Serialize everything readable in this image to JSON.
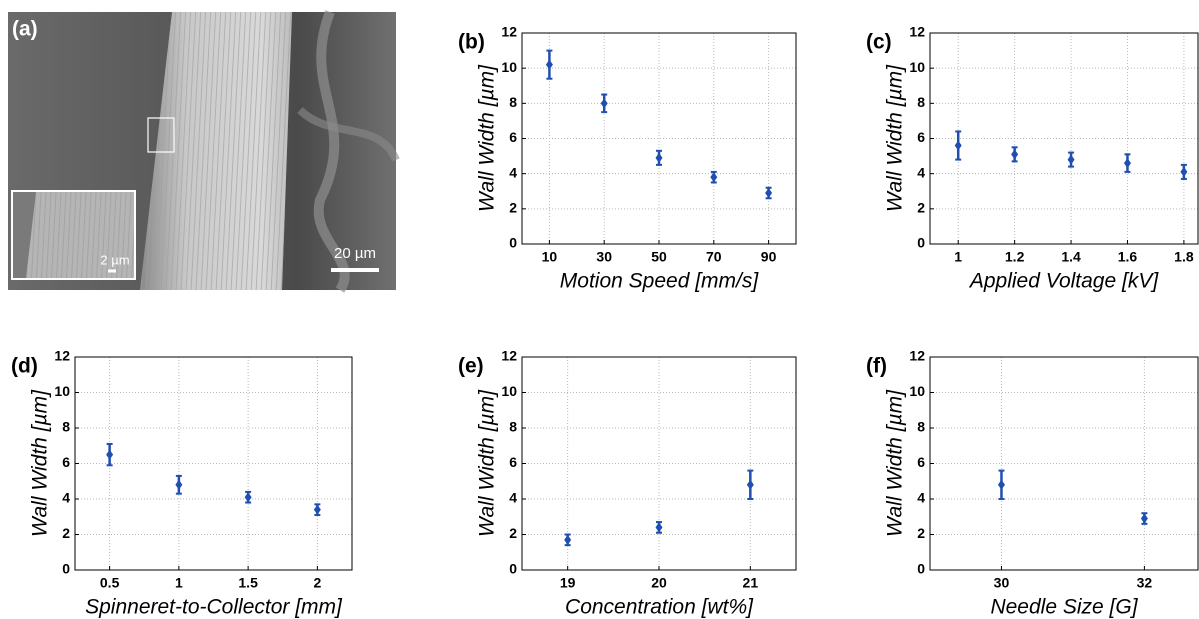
{
  "image": {
    "label": "(a)",
    "scale_bar": "20 µm",
    "inset_scale_bar": "2 µm"
  },
  "chart_data": [
    {
      "type": "errorbar",
      "panel_label": "(b)",
      "xlabel": "Motion Speed [mm/s]",
      "ylabel": "Wall Width [µm]",
      "x": [
        10,
        30,
        50,
        70,
        90
      ],
      "values": [
        10.2,
        8.0,
        4.9,
        3.8,
        2.9
      ],
      "errors": [
        0.8,
        0.5,
        0.4,
        0.3,
        0.3
      ],
      "color": "#1f4fb0",
      "xlim": [
        0,
        100
      ],
      "xticks": [
        10,
        30,
        50,
        70,
        90
      ],
      "ylim": [
        0,
        12
      ],
      "yticks": [
        0,
        2,
        4,
        6,
        8,
        10,
        12
      ],
      "grid": true
    },
    {
      "type": "errorbar",
      "panel_label": "(c)",
      "xlabel": "Applied Voltage [kV]",
      "ylabel": "Wall Width [µm]",
      "x": [
        1,
        1.2,
        1.4,
        1.6,
        1.8
      ],
      "values": [
        5.6,
        5.1,
        4.8,
        4.6,
        4.1
      ],
      "errors": [
        0.8,
        0.4,
        0.4,
        0.5,
        0.4
      ],
      "color": "#1f4fb0",
      "xlim": [
        0.9,
        1.85
      ],
      "xticks": [
        1,
        1.2,
        1.4,
        1.6,
        1.8
      ],
      "ylim": [
        0,
        12
      ],
      "yticks": [
        0,
        2,
        4,
        6,
        8,
        10,
        12
      ],
      "grid": true
    },
    {
      "type": "errorbar",
      "panel_label": "(d)",
      "xlabel": "Spinneret-to-Collector [mm]",
      "ylabel": "Wall Width [µm]",
      "x": [
        0.5,
        1,
        1.5,
        2
      ],
      "values": [
        6.5,
        4.8,
        4.1,
        3.4
      ],
      "errors": [
        0.6,
        0.5,
        0.3,
        0.3
      ],
      "color": "#1f4fb0",
      "xlim": [
        0.25,
        2.25
      ],
      "xticks": [
        0.5,
        1,
        1.5,
        2
      ],
      "ylim": [
        0,
        12
      ],
      "yticks": [
        0,
        2,
        4,
        6,
        8,
        10,
        12
      ],
      "grid": true
    },
    {
      "type": "errorbar",
      "panel_label": "(e)",
      "xlabel": "Concentration [wt%]",
      "ylabel": "Wall Width [µm]",
      "x": [
        19,
        20,
        21
      ],
      "values": [
        1.7,
        2.4,
        4.8
      ],
      "errors": [
        0.3,
        0.3,
        0.8
      ],
      "color": "#1f4fb0",
      "xlim": [
        18.5,
        21.5
      ],
      "xticks": [
        19,
        20,
        21
      ],
      "ylim": [
        0,
        12
      ],
      "yticks": [
        0,
        2,
        4,
        6,
        8,
        10,
        12
      ],
      "grid": true
    },
    {
      "type": "errorbar",
      "panel_label": "(f)",
      "xlabel": "Needle Size [G]",
      "ylabel": "Wall Width [µm]",
      "x": [
        30,
        32
      ],
      "values": [
        4.8,
        2.9
      ],
      "errors": [
        0.8,
        0.3
      ],
      "color": "#1f4fb0",
      "xlim": [
        29,
        32.75
      ],
      "xticks": [
        30,
        32
      ],
      "ylim": [
        0,
        12
      ],
      "yticks": [
        0,
        2,
        4,
        6,
        8,
        10,
        12
      ],
      "grid": true
    }
  ]
}
